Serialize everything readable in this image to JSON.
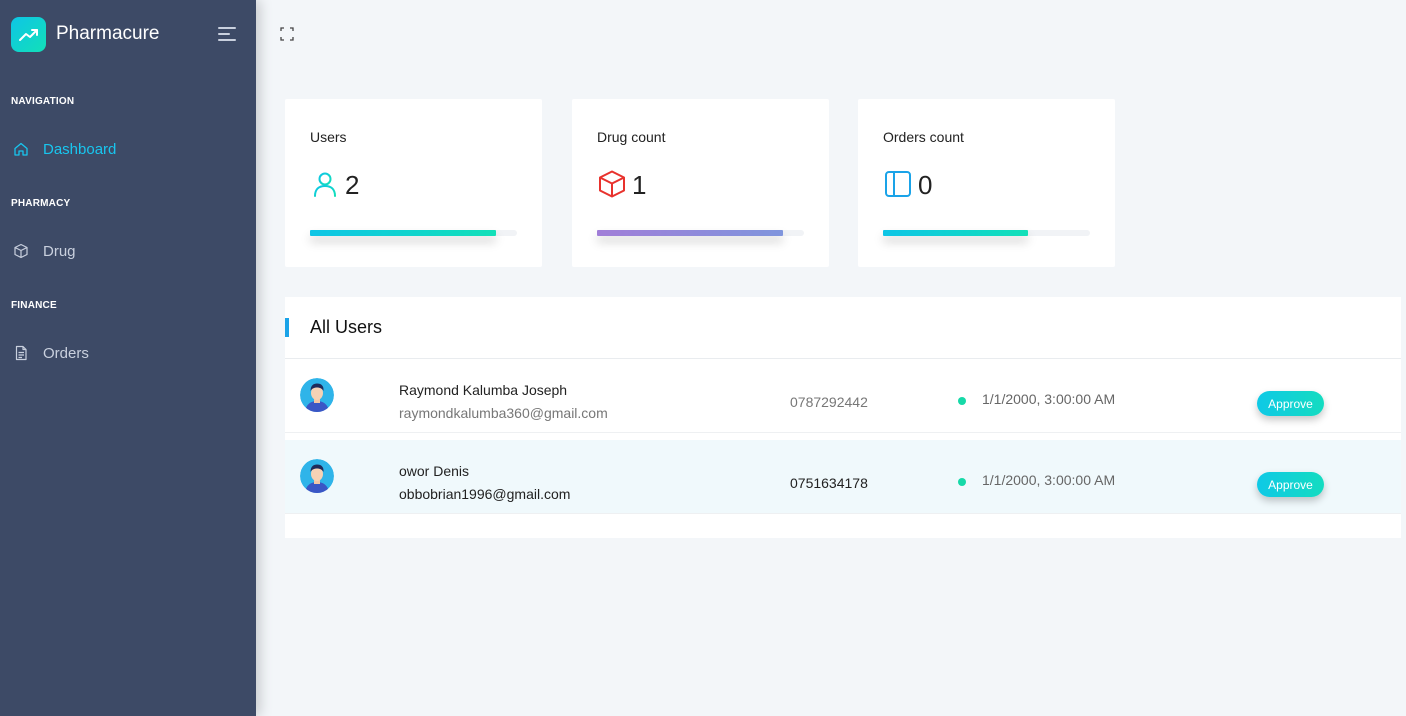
{
  "app": {
    "name": "Pharmacure",
    "logo_icon": "trending-up-icon",
    "accent_color": "#18c6ef",
    "sidebar_color": "#3d4a66"
  },
  "sidebar": {
    "sections": [
      {
        "title": "NAVIGATION",
        "item": {
          "label": "Dashboard",
          "icon": "home-icon",
          "active": true
        }
      },
      {
        "title": "PHARMACY",
        "item": {
          "label": "Drug",
          "icon": "box-icon",
          "active": false
        }
      },
      {
        "title": "FINANCE",
        "item": {
          "label": "Orders",
          "icon": "document-icon",
          "active": false
        }
      }
    ]
  },
  "cards": [
    {
      "label": "Users",
      "value": "2",
      "icon": "user-icon",
      "progress": 0.9,
      "color_start": "#0ec5e6",
      "color_end": "#12e0b8"
    },
    {
      "label": "Drug count",
      "value": "1",
      "icon": "cube-icon",
      "progress": 0.9,
      "color_start": "#a17ed8",
      "color_end": "#7f95dd"
    },
    {
      "label": "Orders count",
      "value": "0",
      "icon": "columns-icon",
      "progress": 0.7,
      "color_start": "#0ec5e6",
      "color_end": "#12e0b8"
    }
  ],
  "users_panel": {
    "title": "All Users",
    "users": [
      {
        "name": "Raymond Kalumba Joseph",
        "email": "raymondkalumba360@gmail.com",
        "phone": "0787292442",
        "date": "1/1/2000, 3:00:00 AM",
        "action": "Approve"
      },
      {
        "name": "owor Denis",
        "email": "obbobrian1996@gmail.com",
        "phone": "0751634178",
        "date": "1/1/2000, 3:00:00 AM",
        "action": "Approve"
      }
    ]
  }
}
